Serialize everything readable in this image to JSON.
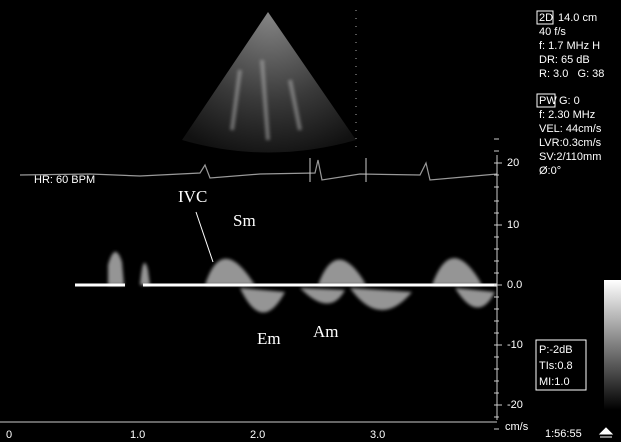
{
  "sector_info": {
    "mode": "2D",
    "depth": "14.0 cm",
    "lines": [
      "40 f/s",
      "f: 1.7 MHz H",
      "DR: 65 dB",
      "R: 3.0   G: 38"
    ]
  },
  "doppler_info": {
    "mode": "PW",
    "gain": "G: 0",
    "lines": [
      "f: 2.30 MHz",
      "VEL: 44cm/s",
      "LVR:0.3cm/s",
      "SV:2/110mm",
      "Ø:0°"
    ]
  },
  "heart_rate": "HR: 60 BPM",
  "velocity_axis": {
    "ticks": [
      "20",
      "10",
      "0.0",
      "-10",
      "-20"
    ],
    "unit": "cm/s"
  },
  "time_axis": {
    "ticks": [
      "0",
      "1.0",
      "2.0",
      "3.0"
    ]
  },
  "annotations": [
    "IVC",
    "Sm",
    "Em",
    "Am"
  ],
  "safety": [
    "P:-2dB",
    "TIs:0.8",
    "MI:1.0"
  ],
  "clock": "1:56:55"
}
